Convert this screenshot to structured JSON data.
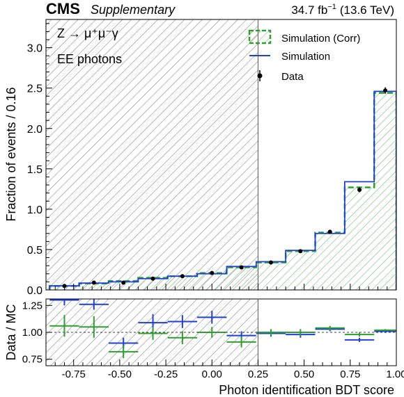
{
  "header": {
    "cms": "CMS",
    "supplementary": "Supplementary",
    "lumi_value": "34.7 fb",
    "lumi_exp": "−1",
    "lumi_energy": "(13.6 TeV)"
  },
  "annotations": {
    "process": "Z → μ⁺μ⁻γ",
    "category": "EE photons"
  },
  "colors": {
    "corr": "#2ca02c",
    "sim": "#1f3fdd",
    "data": "#000000",
    "hatch_region": "#555555"
  },
  "chart_data": [
    {
      "type": "histogram",
      "panel": "main",
      "ylabel": "Fraction of events / 0.16",
      "xlim": [
        -0.9,
        1.0
      ],
      "ylim": [
        0,
        3.35
      ],
      "yticks": [
        0,
        0.5,
        1.0,
        1.5,
        2.0,
        2.5,
        3.0
      ],
      "ytick_labels": [
        "0.0",
        "0.5",
        "1.0",
        "1.5",
        "2.0",
        "2.5",
        "3.0"
      ],
      "shaded_region": [
        -0.9,
        0.25
      ],
      "legend": {
        "placement": "top-right",
        "entries": [
          "Simulation (Corr)",
          "Simulation",
          "Data"
        ]
      },
      "bin_edges": [
        -0.88,
        -0.72,
        -0.56,
        -0.4,
        -0.24,
        -0.08,
        0.08,
        0.24,
        0.4,
        0.56,
        0.72,
        0.88,
        1.0
      ],
      "series": [
        {
          "name": "Simulation (Corr)",
          "style": "hatched-step",
          "values": [
            0.05,
            0.08,
            0.11,
            0.15,
            0.17,
            0.21,
            0.28,
            0.34,
            0.48,
            0.71,
            1.27,
            2.44
          ]
        },
        {
          "name": "Simulation",
          "style": "step",
          "values": [
            0.05,
            0.085,
            0.1,
            0.14,
            0.17,
            0.2,
            0.29,
            0.35,
            0.49,
            0.7,
            1.34,
            2.46
          ]
        },
        {
          "name": "Data",
          "style": "points",
          "x": [
            -0.8,
            -0.64,
            -0.48,
            -0.32,
            -0.16,
            0.0,
            0.16,
            0.32,
            0.48,
            0.64,
            0.8,
            0.94
          ],
          "values": [
            0.05,
            0.09,
            0.09,
            0.14,
            0.17,
            0.21,
            0.28,
            0.34,
            0.48,
            0.72,
            1.24,
            2.47
          ],
          "errors": [
            0.01,
            0.01,
            0.01,
            0.01,
            0.01,
            0.01,
            0.01,
            0.02,
            0.02,
            0.02,
            0.03,
            0.04
          ]
        }
      ]
    },
    {
      "type": "ratio",
      "panel": "ratio",
      "xlabel": "Photon identification BDT score",
      "ylabel": "Data / MC",
      "xlim": [
        -0.9,
        1.0
      ],
      "ylim": [
        0.69,
        1.31
      ],
      "yticks": [
        0.75,
        1.0,
        1.25
      ],
      "ytick_labels": [
        "0.75",
        "1.00",
        "1.25"
      ],
      "xticks": [
        -0.75,
        -0.5,
        -0.25,
        0.0,
        0.25,
        0.5,
        0.75,
        1.0
      ],
      "xtick_labels": [
        "-0.75",
        "-0.50",
        "-0.25",
        "0.00",
        "0.25",
        "0.50",
        "0.75",
        "1.00"
      ],
      "reference_line": 1.0,
      "shaded_region": [
        -0.9,
        0.25
      ],
      "bin_edges": [
        -0.88,
        -0.72,
        -0.56,
        -0.4,
        -0.24,
        -0.08,
        0.08,
        0.24,
        0.4,
        0.56,
        0.72,
        0.88,
        1.0
      ],
      "series": [
        {
          "name": "Simulation",
          "values": [
            1.3,
            1.26,
            0.9,
            1.09,
            1.1,
            1.14,
            0.97,
            0.99,
            0.98,
            1.03,
            0.93,
            1.01
          ],
          "errors": [
            0.05,
            0.05,
            0.05,
            0.08,
            0.06,
            0.06,
            0.04,
            0.03,
            0.03,
            0.02,
            0.02,
            0.015
          ]
        },
        {
          "name": "Simulation (Corr)",
          "values": [
            1.06,
            1.05,
            0.82,
            0.99,
            0.95,
            1.0,
            0.91,
            1.0,
            1.0,
            1.04,
            0.98,
            1.02
          ],
          "errors": [
            0.1,
            0.1,
            0.06,
            0.06,
            0.06,
            0.05,
            0.05,
            0.03,
            0.03,
            0.02,
            0.02,
            0.01
          ]
        }
      ]
    }
  ]
}
